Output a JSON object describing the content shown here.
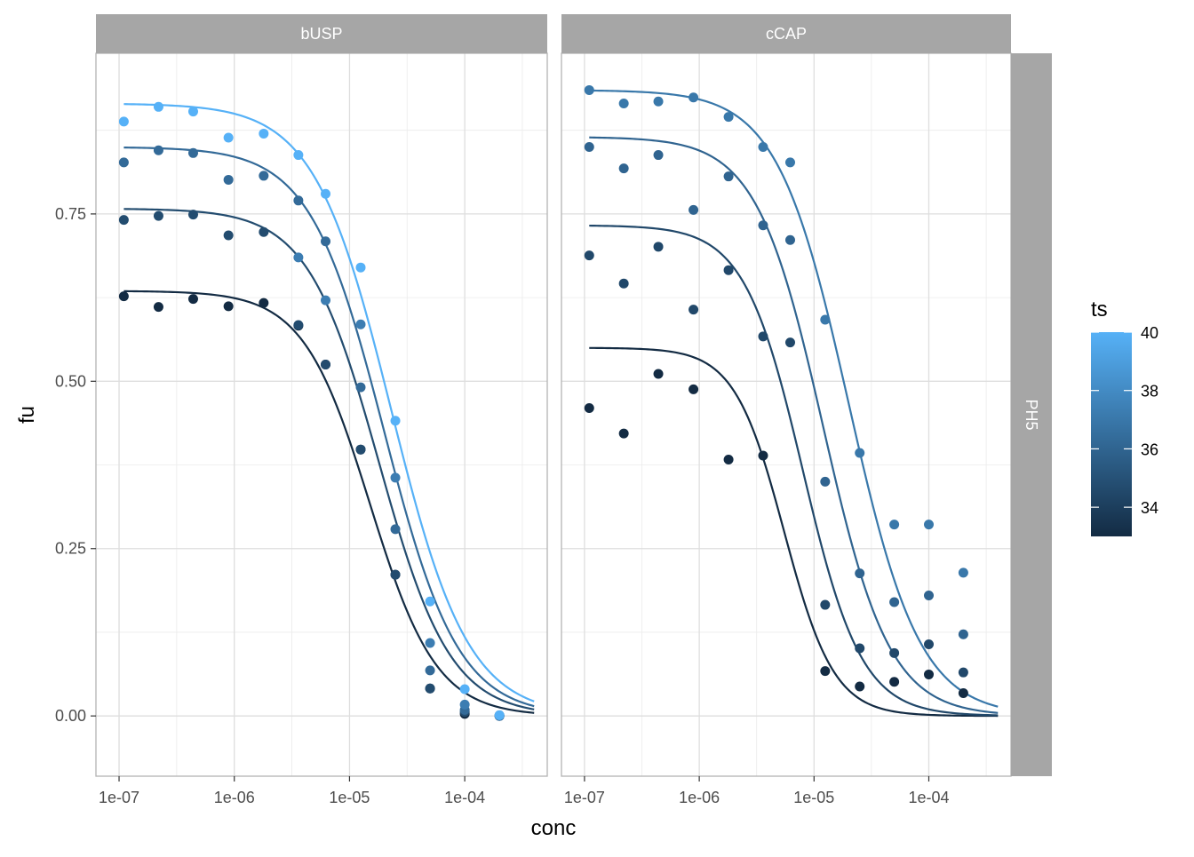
{
  "chart_data": {
    "type": "scatter",
    "facets": [
      "bUSP",
      "cCAP"
    ],
    "row_strip": "PH5",
    "xlabel": "conc",
    "ylabel": "fu",
    "x_scale": "log10",
    "xlim": [
      6.3e-08,
      0.00052
    ],
    "ylim": [
      -0.09,
      0.99
    ],
    "x_ticks": [
      1e-07,
      1e-06,
      1e-05,
      0.0001
    ],
    "x_tick_labels": [
      "1e-07",
      "1e-06",
      "1e-05",
      "1e-04"
    ],
    "y_ticks": [
      0,
      0.25,
      0.5,
      0.75
    ],
    "y_tick_labels": [
      "0.00",
      "0.25",
      "0.50",
      "0.75"
    ],
    "grid": true,
    "legend": {
      "title": "ts",
      "position": "right",
      "range": [
        33,
        40
      ],
      "ticks": [
        34,
        36,
        38,
        40
      ],
      "low_color": "#132B43",
      "high_color": "#56B1F7"
    },
    "x_conc": [
      1.1e-07,
      2.2e-07,
      4.4e-07,
      8.9e-07,
      1.8e-06,
      3.6e-06,
      6.2e-06,
      1.25e-05,
      2.5e-05,
      5e-05,
      0.0001,
      0.0002
    ],
    "panels": [
      {
        "facet": "bUSP",
        "series": [
          {
            "ts": 33,
            "y": [
              0.627,
              0.611,
              0.623,
              0.612,
              0.617,
              0.583,
              0.525,
              0.398,
              0.211,
              0.041,
              0.003,
              0.0
            ],
            "fit": {
              "top": 0.635,
              "ec50": 1.5e-05,
              "hill": 1.5
            }
          },
          {
            "ts": 34.7,
            "y": [
              0.741,
              0.747,
              0.749,
              0.718,
              0.723,
              0.584,
              0.525,
              0.398,
              0.211,
              0.041,
              0.006,
              0.0
            ],
            "fit": {
              "top": 0.758,
              "ec50": 1.8e-05,
              "hill": 1.4
            }
          },
          {
            "ts": 36.3,
            "y": [
              0.827,
              0.845,
              0.841,
              0.801,
              0.807,
              0.77,
              0.709,
              0.491,
              0.279,
              0.068,
              0.009,
              0.0
            ],
            "fit": {
              "top": 0.85,
              "ec50": 2e-05,
              "hill": 1.35
            }
          },
          {
            "ts": 37.3,
            "y": [
              null,
              null,
              null,
              null,
              null,
              0.685,
              0.621,
              0.585,
              0.356,
              0.109,
              0.017,
              0.001
            ],
            "fit": null
          },
          {
            "ts": 40,
            "y": [
              0.888,
              0.91,
              0.903,
              0.864,
              0.87,
              0.838,
              0.78,
              0.67,
              0.441,
              0.171,
              0.04,
              0.001
            ],
            "fit": {
              "top": 0.915,
              "ec50": 2.3e-05,
              "hill": 1.3
            }
          }
        ]
      },
      {
        "facet": "cCAP",
        "series": [
          {
            "ts": 33,
            "y": [
              0.46,
              0.422,
              0.511,
              0.488,
              0.383,
              0.389,
              null,
              0.067,
              0.044,
              0.051,
              0.062,
              0.034
            ],
            "fit": {
              "top": 0.55,
              "ec50": 5.5e-06,
              "hill": 2.0
            }
          },
          {
            "ts": 34.5,
            "y": [
              0.688,
              0.646,
              0.701,
              0.607,
              0.666,
              0.567,
              0.558,
              0.166,
              0.101,
              0.094,
              0.107,
              0.065
            ],
            "fit": {
              "top": 0.733,
              "ec50": 8e-06,
              "hill": 1.7
            }
          },
          {
            "ts": 36,
            "y": [
              0.85,
              0.818,
              0.838,
              0.756,
              0.806,
              0.733,
              0.711,
              0.35,
              0.213,
              0.17,
              0.18,
              0.122
            ],
            "fit": {
              "top": 0.865,
              "ec50": 1.2e-05,
              "hill": 1.5
            }
          },
          {
            "ts": 37,
            "y": [
              0.935,
              0.915,
              0.918,
              0.924,
              0.895,
              0.85,
              0.827,
              0.592,
              0.393,
              0.286,
              0.286,
              0.214
            ],
            "fit": {
              "top": 0.935,
              "ec50": 2e-05,
              "hill": 1.4
            }
          }
        ]
      }
    ]
  }
}
